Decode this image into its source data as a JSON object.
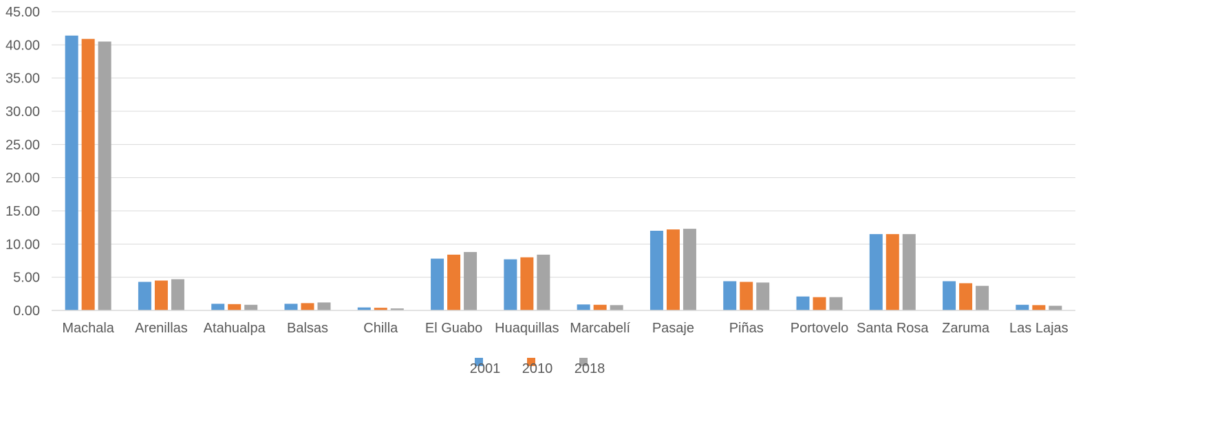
{
  "chart_data": {
    "type": "bar",
    "categories": [
      "Machala",
      "Arenillas",
      "Atahualpa",
      "Balsas",
      "Chilla",
      "El Guabo",
      "Huaquillas",
      "Marcabelí",
      "Pasaje",
      "Piñas",
      "Portovelo",
      "Santa Rosa",
      "Zaruma",
      "Las Lajas"
    ],
    "series": [
      {
        "name": "2001",
        "color": "#5B9BD5",
        "values": [
          41.4,
          4.3,
          1.0,
          1.0,
          0.45,
          7.8,
          7.7,
          0.9,
          12.0,
          4.4,
          2.1,
          11.5,
          4.4,
          0.85
        ]
      },
      {
        "name": "2010",
        "color": "#ED7D31",
        "values": [
          40.9,
          4.5,
          0.95,
          1.1,
          0.4,
          8.4,
          8.0,
          0.85,
          12.2,
          4.3,
          2.0,
          11.5,
          4.1,
          0.8
        ]
      },
      {
        "name": "2018",
        "color": "#A5A5A5",
        "values": [
          40.5,
          4.7,
          0.85,
          1.2,
          0.3,
          8.8,
          8.4,
          0.8,
          12.3,
          4.2,
          2.0,
          11.5,
          3.7,
          0.7
        ]
      }
    ],
    "ylim": [
      0,
      45
    ],
    "yticks": [
      "0.00",
      "5.00",
      "10.00",
      "15.00",
      "20.00",
      "25.00",
      "30.00",
      "35.00",
      "40.00",
      "45.00"
    ],
    "grid": true,
    "legend_position": "bottom",
    "title": "",
    "xlabel": "",
    "ylabel": ""
  }
}
